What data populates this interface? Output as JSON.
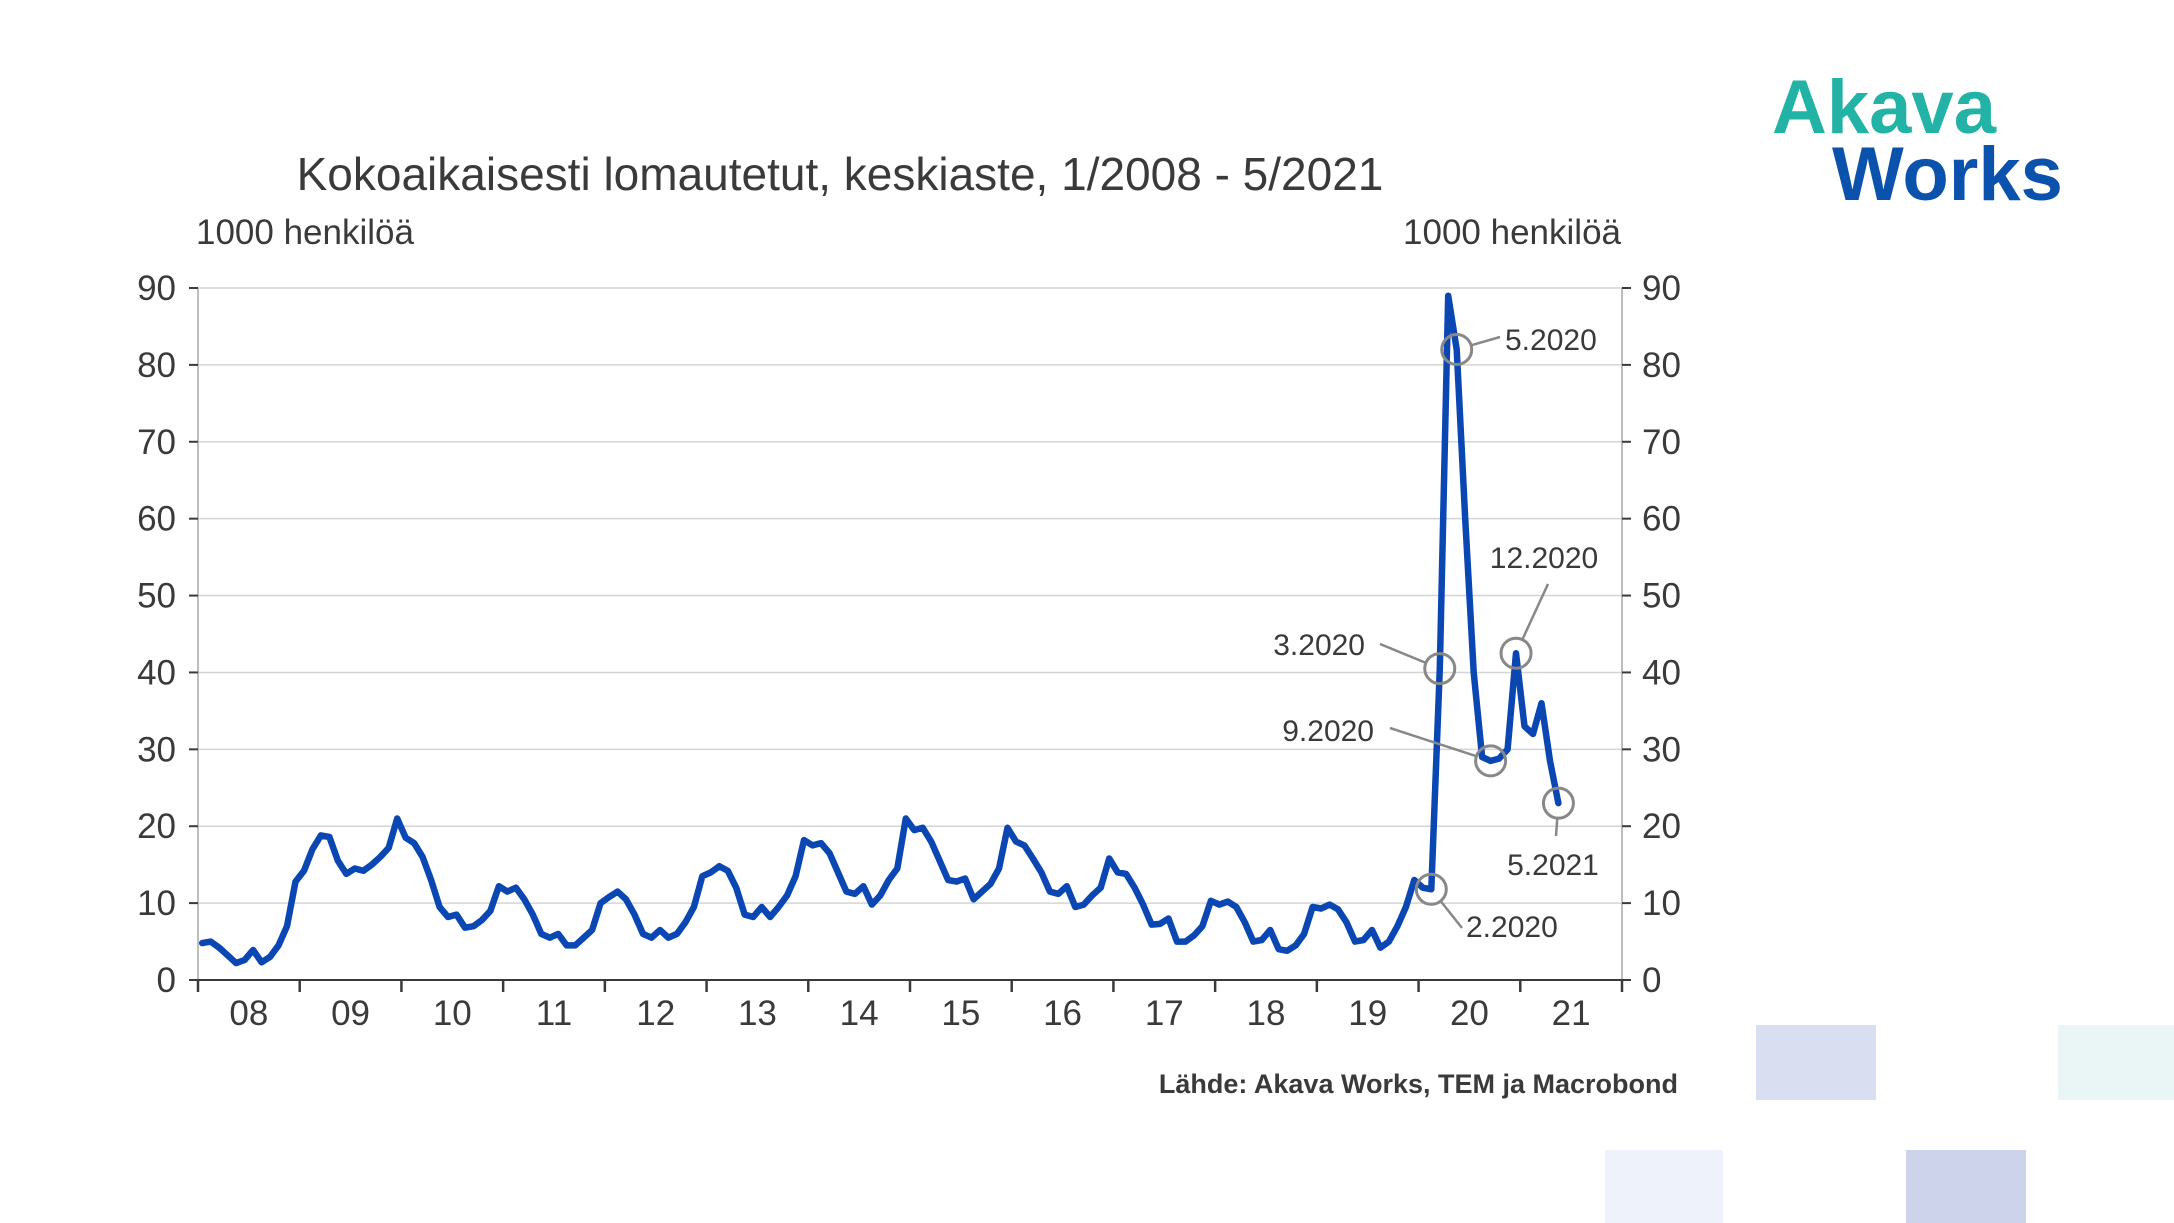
{
  "logo": {
    "line1": "Akava",
    "line2": "Works"
  },
  "colors": {
    "series": "#0b47b3",
    "grid": "#d4d4d4",
    "axis": "#3a3a3a",
    "logo_teal": "#22b2a6",
    "logo_blue": "#0b52ad",
    "callout": "#888888"
  },
  "source": "Lähde: Akava Works, TEM ja Macrobond",
  "chart_data": {
    "type": "line",
    "title": "Kokoaikaisesti lomautetut, keskiaste, 1/2008 - 5/2021",
    "ylabel_left": "1000 henkilöä",
    "ylabel_right": "1000 henkilöä",
    "ylim": [
      0,
      90
    ],
    "yticks": [
      0,
      10,
      20,
      30,
      40,
      50,
      60,
      70,
      80,
      90
    ],
    "x_tick_labels": [
      "08",
      "09",
      "10",
      "11",
      "12",
      "13",
      "14",
      "15",
      "16",
      "17",
      "18",
      "19",
      "20",
      "21"
    ],
    "grid": true,
    "x_start": "1/2008",
    "x_end": "5/2021",
    "series": [
      {
        "values": [
          4.8,
          5.0,
          4.2,
          3.2,
          2.2,
          2.6,
          3.9,
          2.3,
          3.0,
          4.5,
          7.0,
          12.8,
          14.2,
          17.0,
          18.8,
          18.6,
          15.5,
          13.8,
          14.5,
          14.2,
          15.0,
          16.0,
          17.2,
          21.0,
          18.5,
          17.8,
          16.0,
          13.0,
          9.5,
          8.2,
          8.5,
          6.8,
          7.0,
          7.8,
          9.0,
          12.2,
          11.5,
          12.0,
          10.5,
          8.5,
          6.0,
          5.5,
          6.0,
          4.5,
          4.5,
          5.5,
          6.5,
          10.0,
          10.8,
          11.5,
          10.5,
          8.5,
          6.0,
          5.5,
          6.5,
          5.5,
          6.0,
          7.5,
          9.5,
          13.5,
          14.0,
          14.8,
          14.2,
          12.0,
          8.5,
          8.2,
          9.5,
          8.2,
          9.5,
          11.0,
          13.5,
          18.2,
          17.5,
          17.8,
          16.5,
          14.0,
          11.5,
          11.2,
          12.2,
          9.8,
          11.0,
          13.0,
          14.5,
          21.0,
          19.5,
          19.8,
          18.0,
          15.5,
          13.0,
          12.8,
          13.2,
          10.5,
          11.5,
          12.5,
          14.5,
          19.8,
          18.0,
          17.5,
          15.8,
          14.0,
          11.5,
          11.2,
          12.2,
          9.5,
          9.8,
          11.0,
          12.0,
          15.8,
          14.0,
          13.8,
          12.0,
          9.8,
          7.2,
          7.3,
          8.0,
          5.0,
          5.0,
          5.8,
          7.0,
          10.3,
          9.8,
          10.2,
          9.5,
          7.5,
          5.0,
          5.2,
          6.5,
          4.0,
          3.8,
          4.5,
          6.0,
          9.5,
          9.3,
          9.8,
          9.2,
          7.5,
          5.0,
          5.2,
          6.5,
          4.2,
          5.0,
          7.0,
          9.5,
          13.0,
          12.0,
          11.8,
          40.5,
          89.0,
          82.0,
          60.0,
          40.0,
          29.0,
          28.5,
          28.8,
          30.0,
          42.5,
          33.0,
          32.0,
          36.0,
          28.5,
          23.0
        ]
      }
    ],
    "annotations": [
      {
        "label": "2.2020",
        "index": 145
      },
      {
        "label": "3.2020",
        "index": 146
      },
      {
        "label": "5.2020",
        "index": 148
      },
      {
        "label": "9.2020",
        "index": 152
      },
      {
        "label": "12.2020",
        "index": 155
      },
      {
        "label": "5.2021",
        "index": 160
      }
    ]
  }
}
